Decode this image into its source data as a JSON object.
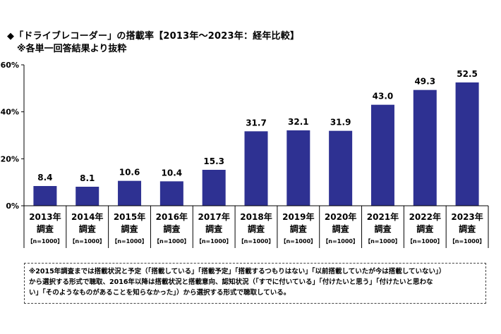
{
  "title": "◆「ドライブレコーダー」の搭載率【2013年～2023年：経年比較】",
  "subtitle": "※各単一回答結果より抜粋",
  "chart_data": {
    "type": "bar",
    "categories": [
      "2013年",
      "2014年",
      "2015年",
      "2016年",
      "2017年",
      "2018年",
      "2019年",
      "2020年",
      "2021年",
      "2022年",
      "2023年"
    ],
    "category_sublabel": "調査",
    "category_n": "【n=1000】",
    "values": [
      8.4,
      8.1,
      10.6,
      10.4,
      15.3,
      31.7,
      32.1,
      31.9,
      43.0,
      49.3,
      52.5
    ],
    "value_labels": [
      "8.4",
      "8.1",
      "10.6",
      "10.4",
      "15.3",
      "31.7",
      "32.1",
      "31.9",
      "43.0",
      "49.3",
      "52.5"
    ],
    "yticks": [
      "0%",
      "20%",
      "40%",
      "60%"
    ],
    "ytick_values": [
      0,
      20,
      40,
      60
    ],
    "ylim": [
      0,
      60
    ],
    "bar_color": "#2E3192",
    "grid": false
  },
  "note": {
    "lines": [
      "※2015年調査までは搭載状況と予定（「搭載している」「搭載予定」「搭載するつもりはない」「以前搭載していたが今は搭載していない」）",
      "から選択する形式で聴取、2016年以降は搭載状況と搭載意向、認知状況（「すでに付いている」「付けたいと思う」「付けたいと思わな",
      "い」「そのようなものがあることを知らなかった」）から選択する形式で聴取している。"
    ]
  }
}
